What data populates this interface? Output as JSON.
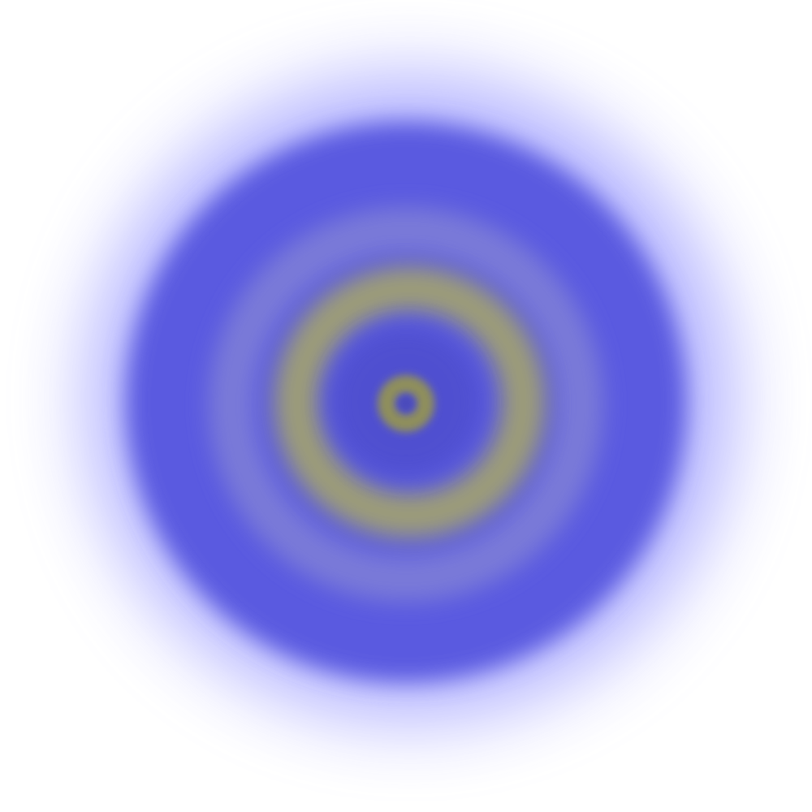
{
  "image": {
    "subject": "concentric-rings",
    "colors": {
      "background": "#ffffff",
      "halo_light": "#7a7aff",
      "outer_blue": "#5a5ae0",
      "mid_blue": "#7a7ad8",
      "olive_ring": "#9c9c78",
      "olive_inner": "#8a8a70",
      "inner_blue": "#4f4fd0",
      "core_olive": "#8f8f5c",
      "center_dot": "#4a4ab8"
    }
  }
}
